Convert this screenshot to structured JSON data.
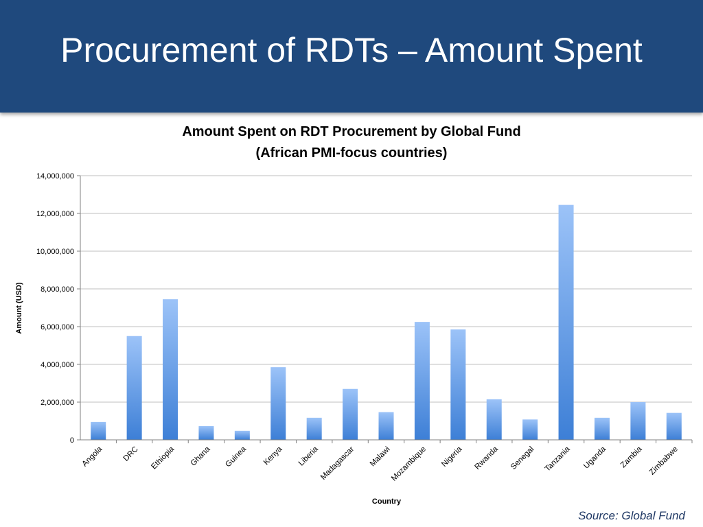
{
  "slide": {
    "title": "Procurement of RDTs – Amount Spent",
    "source": "Source: Global Fund"
  },
  "colors": {
    "header": "#1f497d",
    "bar_top": "#9cc3f8",
    "bar_bottom": "#3d7fd6",
    "grid": "#bfbfbf"
  },
  "chart_data": {
    "type": "bar",
    "title": "Amount Spent on RDT Procurement by Global Fund",
    "subtitle": "(African PMI-focus countries)",
    "xlabel": "Country",
    "ylabel": "Amount (USD)",
    "ylim": [
      0,
      14000000
    ],
    "yticks": [
      0,
      2000000,
      4000000,
      6000000,
      8000000,
      10000000,
      12000000,
      14000000
    ],
    "ytick_labels": [
      "0",
      "2,000,000",
      "4,000,000",
      "6,000,000",
      "8,000,000",
      "10,000,000",
      "12,000,000",
      "14,000,000"
    ],
    "grid": true,
    "legend": "none",
    "categories": [
      "Angola",
      "DRC",
      "Ethiopia",
      "Ghana",
      "Guinea",
      "Kenya",
      "Liberia",
      "Madagascar",
      "Malawi",
      "Mozambique",
      "Nigeria",
      "Rwanda",
      "Senegal",
      "Tanzania",
      "Uganda",
      "Zambia",
      "Zimbabwe"
    ],
    "values": [
      950000,
      5500000,
      7450000,
      730000,
      480000,
      3850000,
      1170000,
      2700000,
      1470000,
      6250000,
      5850000,
      2150000,
      1080000,
      12450000,
      1170000,
      2000000,
      1430000
    ]
  }
}
